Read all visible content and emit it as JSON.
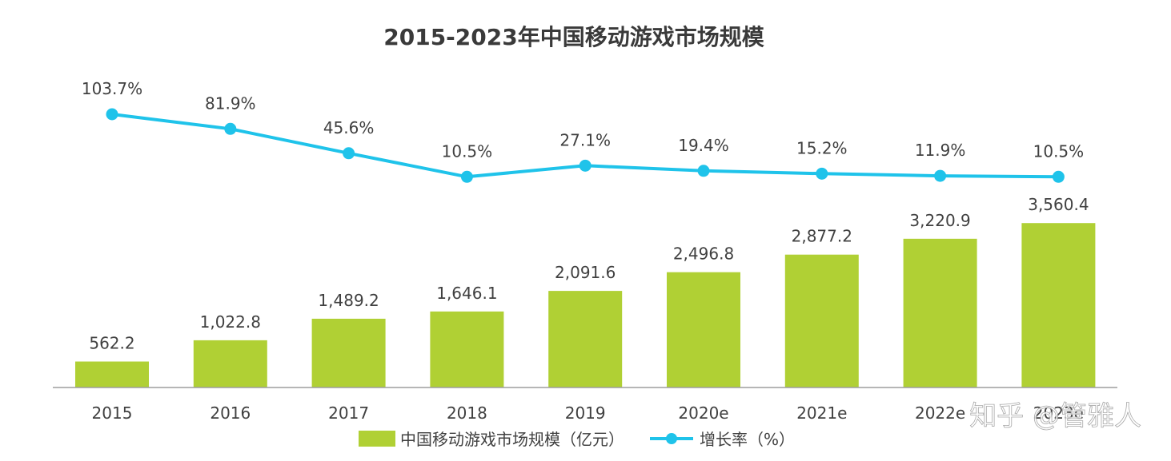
{
  "chart_data": {
    "type": "bar+line",
    "title": "2015-2023年中国移动游戏市场规模",
    "categories": [
      "2015",
      "2016",
      "2017",
      "2018",
      "2019",
      "2020e",
      "2021e",
      "2022e",
      "2023e"
    ],
    "series": [
      {
        "name": "中国移动游戏市场规模（亿元）",
        "type": "bar",
        "values": [
          562.2,
          1022.8,
          1489.2,
          1646.1,
          2091.6,
          2496.8,
          2877.2,
          3220.9,
          3560.4
        ],
        "labels": [
          "562.2",
          "1,022.8",
          "1,489.2",
          "1,646.1",
          "2,091.6",
          "2,496.8",
          "2,877.2",
          "3,220.9",
          "3,560.4"
        ]
      },
      {
        "name": "增长率（%）",
        "type": "line",
        "values": [
          103.7,
          81.9,
          45.6,
          10.5,
          27.1,
          19.4,
          15.2,
          11.9,
          10.5
        ],
        "labels": [
          "103.7%",
          "81.9%",
          "45.6%",
          "10.5%",
          "27.1%",
          "19.4%",
          "15.2%",
          "11.9%",
          "10.5%"
        ]
      }
    ],
    "legend_position": "bottom",
    "grid": false
  },
  "colors": {
    "bar": "#b0d034",
    "line": "#1fc3ea",
    "axis": "#9e9e9e",
    "text": "#404040",
    "title": "#3a3a3a"
  },
  "watermark": "知乎 @管雅人"
}
